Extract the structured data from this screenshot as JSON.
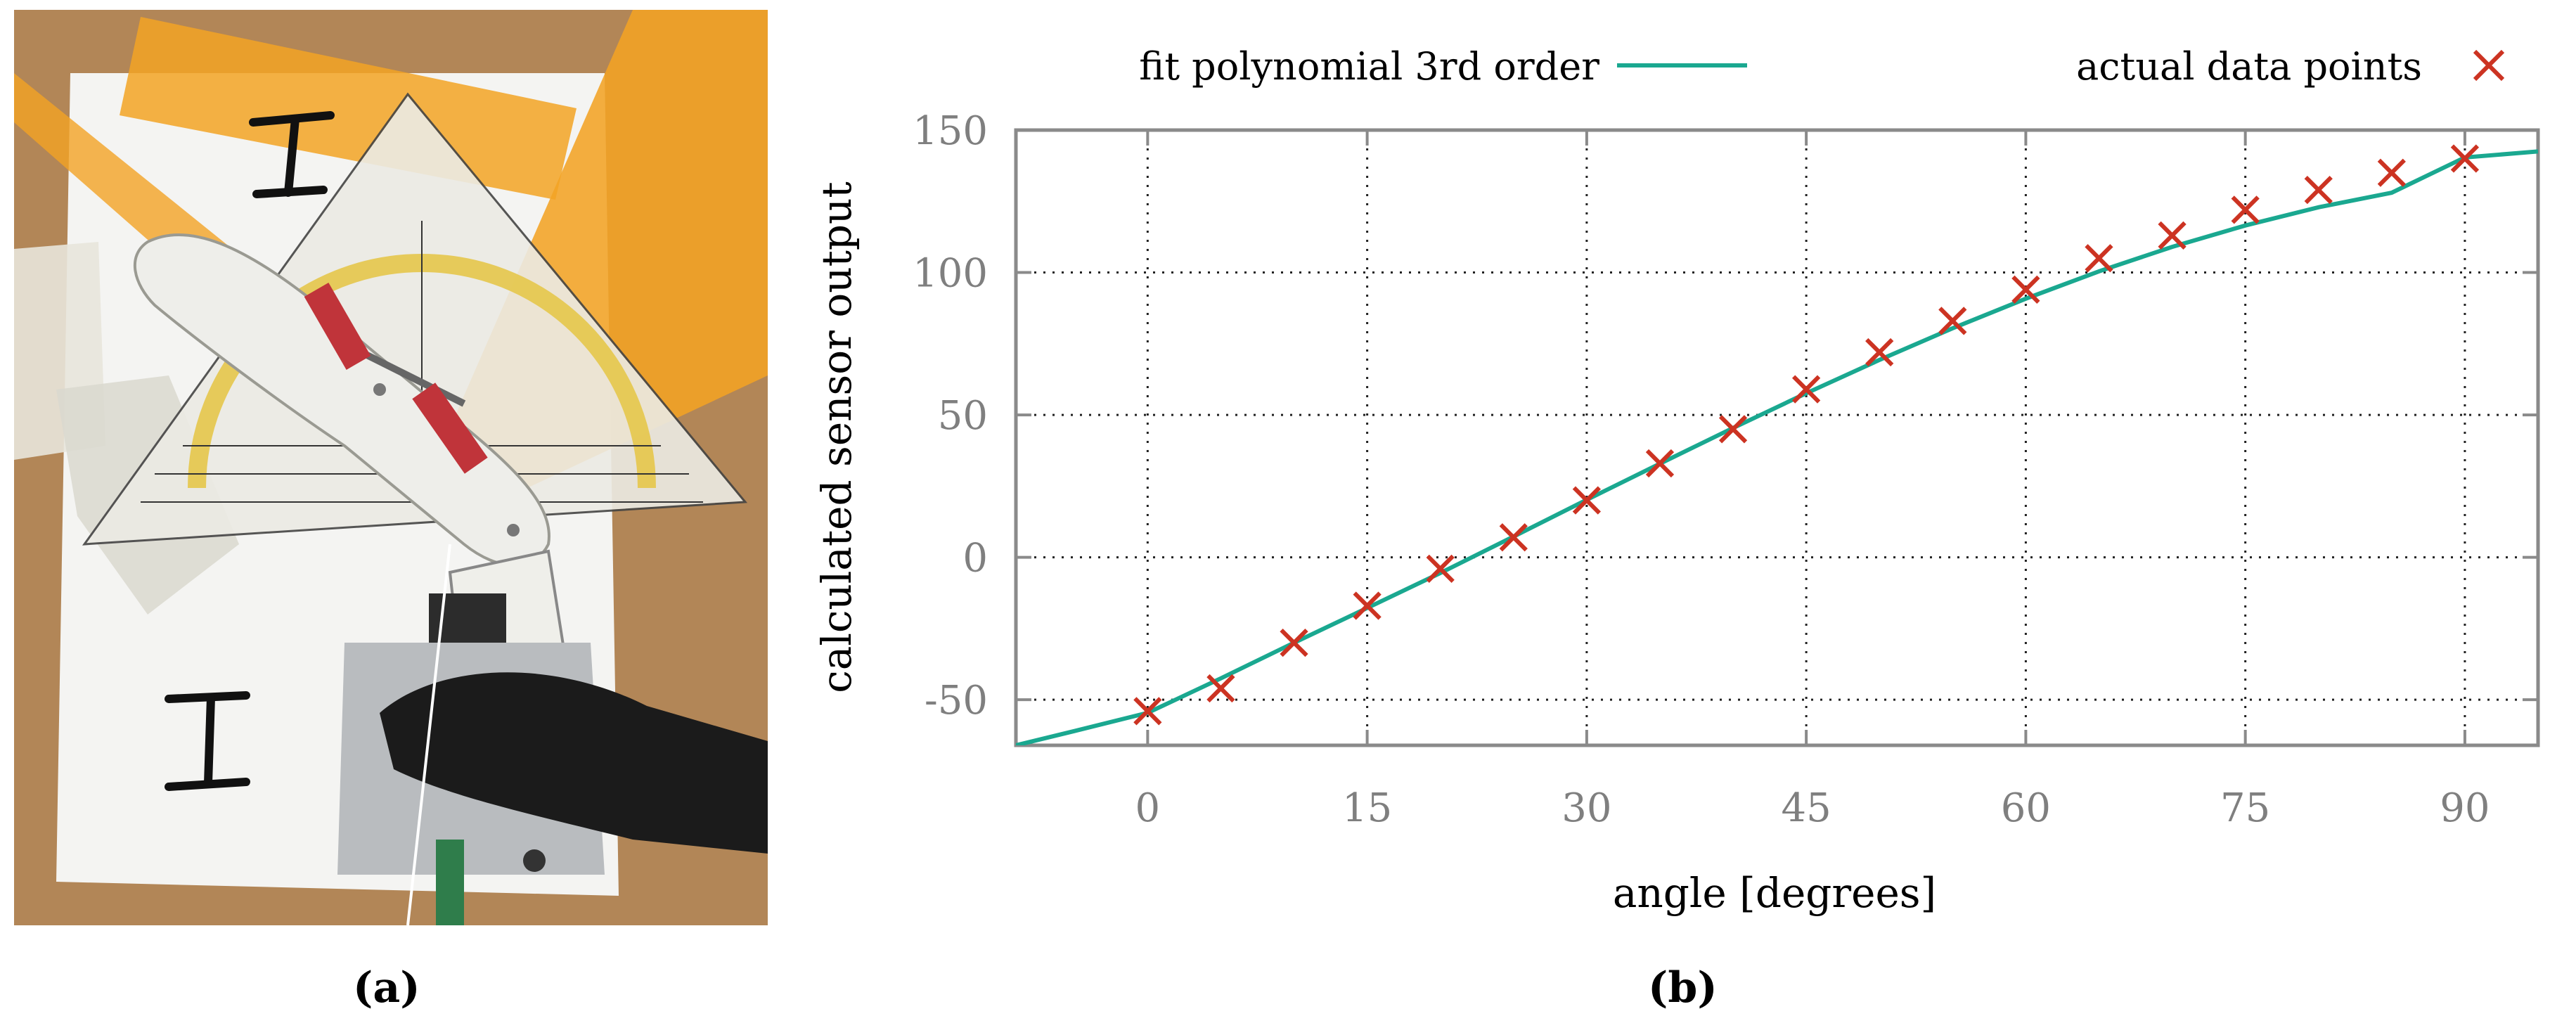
{
  "captions": {
    "a": "(a)",
    "b": "(b)"
  },
  "photo": {
    "description_icons": [
      "fixture-photo"
    ],
    "handwritten_marks": [
      "I",
      "I"
    ]
  },
  "chart_data": {
    "type": "scatter",
    "xlabel": "angle [degrees]",
    "ylabel": "calculated sensor output",
    "xlim": [
      -9,
      95
    ],
    "ylim": [
      -66,
      150
    ],
    "xticks": [
      0,
      15,
      30,
      45,
      60,
      75,
      90
    ],
    "yticks": [
      -50,
      0,
      50,
      100,
      150
    ],
    "grid": true,
    "legend": "top",
    "series": [
      {
        "name": "fit polynomial 3rd order",
        "kind": "line",
        "color": "#1aa890",
        "x": [
          -9,
          -5,
          0,
          5,
          10,
          15,
          20,
          25,
          30,
          35,
          40,
          45,
          50,
          55,
          60,
          65,
          70,
          75,
          80,
          85,
          90,
          95
        ],
        "y": [
          -66,
          -61,
          -54.6,
          -42.5,
          -30,
          -17.8,
          -5.5,
          7.3,
          20.2,
          32.9,
          45.4,
          57.6,
          69.3,
          80.4,
          90.8,
          100.4,
          109,
          116.5,
          122.9,
          128,
          140.4,
          142.5
        ]
      },
      {
        "name": "actual data points",
        "kind": "scatter",
        "marker": "x",
        "color": "#cc3322",
        "x": [
          0,
          5,
          10,
          15,
          20,
          25,
          30,
          35,
          40,
          45,
          50,
          55,
          60,
          65,
          70,
          75,
          80,
          85,
          90
        ],
        "y": [
          -54,
          -46,
          -30,
          -17,
          -4,
          7,
          20,
          33,
          45,
          59,
          72,
          83,
          94,
          105,
          113,
          122,
          129,
          135,
          140
        ]
      }
    ]
  }
}
